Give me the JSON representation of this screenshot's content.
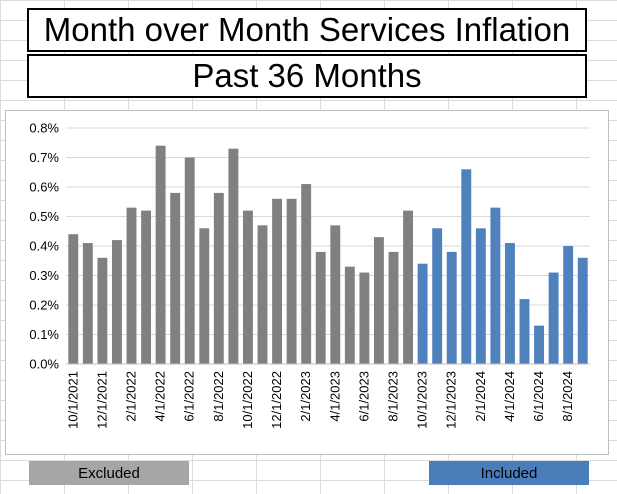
{
  "titles": {
    "main": "Month over Month Services Inflation",
    "sub": "Past 36 Months"
  },
  "bands": {
    "excluded": "Excluded",
    "included": "Included"
  },
  "colors": {
    "excluded": "#808080",
    "included": "#4f81bd",
    "excluded_band": "#a6a6a6",
    "included_band": "#4a7ebb"
  },
  "chart_data": {
    "type": "bar",
    "ylim": [
      0,
      0.8
    ],
    "y_ticks": [
      "0.0%",
      "0.1%",
      "0.2%",
      "0.3%",
      "0.4%",
      "0.5%",
      "0.6%",
      "0.7%",
      "0.8%"
    ],
    "y_unit": "%",
    "grid": true,
    "x_tick_labels": [
      "10/1/2021",
      "12/1/2021",
      "2/1/2022",
      "4/1/2022",
      "6/1/2022",
      "8/1/2022",
      "10/1/2022",
      "12/1/2022",
      "2/1/2023",
      "4/1/2023",
      "6/1/2023",
      "8/1/2023",
      "10/1/2023",
      "12/1/2023",
      "2/1/2024",
      "4/1/2024",
      "6/1/2024",
      "8/1/2024"
    ],
    "categories": [
      "10/1/2021",
      "11/1/2021",
      "12/1/2021",
      "1/1/2022",
      "2/1/2022",
      "3/1/2022",
      "4/1/2022",
      "5/1/2022",
      "6/1/2022",
      "7/1/2022",
      "8/1/2022",
      "9/1/2022",
      "10/1/2022",
      "11/1/2022",
      "12/1/2022",
      "1/1/2023",
      "2/1/2023",
      "3/1/2023",
      "4/1/2023",
      "5/1/2023",
      "6/1/2023",
      "7/1/2023",
      "8/1/2023",
      "9/1/2023",
      "10/1/2023",
      "11/1/2023",
      "12/1/2023",
      "1/1/2024",
      "2/1/2024",
      "3/1/2024",
      "4/1/2024",
      "5/1/2024",
      "6/1/2024",
      "7/1/2024",
      "8/1/2024",
      "9/1/2024"
    ],
    "values": [
      0.44,
      0.41,
      0.36,
      0.42,
      0.53,
      0.52,
      0.74,
      0.58,
      0.7,
      0.46,
      0.58,
      0.73,
      0.52,
      0.47,
      0.56,
      0.56,
      0.61,
      0.38,
      0.47,
      0.33,
      0.31,
      0.43,
      0.38,
      0.52,
      0.34,
      0.46,
      0.38,
      0.66,
      0.46,
      0.53,
      0.41,
      0.22,
      0.13,
      0.31,
      0.4,
      0.36
    ],
    "groups": [
      "excluded",
      "excluded",
      "excluded",
      "excluded",
      "excluded",
      "excluded",
      "excluded",
      "excluded",
      "excluded",
      "excluded",
      "excluded",
      "excluded",
      "excluded",
      "excluded",
      "excluded",
      "excluded",
      "excluded",
      "excluded",
      "excluded",
      "excluded",
      "excluded",
      "excluded",
      "excluded",
      "excluded",
      "included",
      "included",
      "included",
      "included",
      "included",
      "included",
      "included",
      "included",
      "included",
      "included",
      "included",
      "included"
    ]
  }
}
